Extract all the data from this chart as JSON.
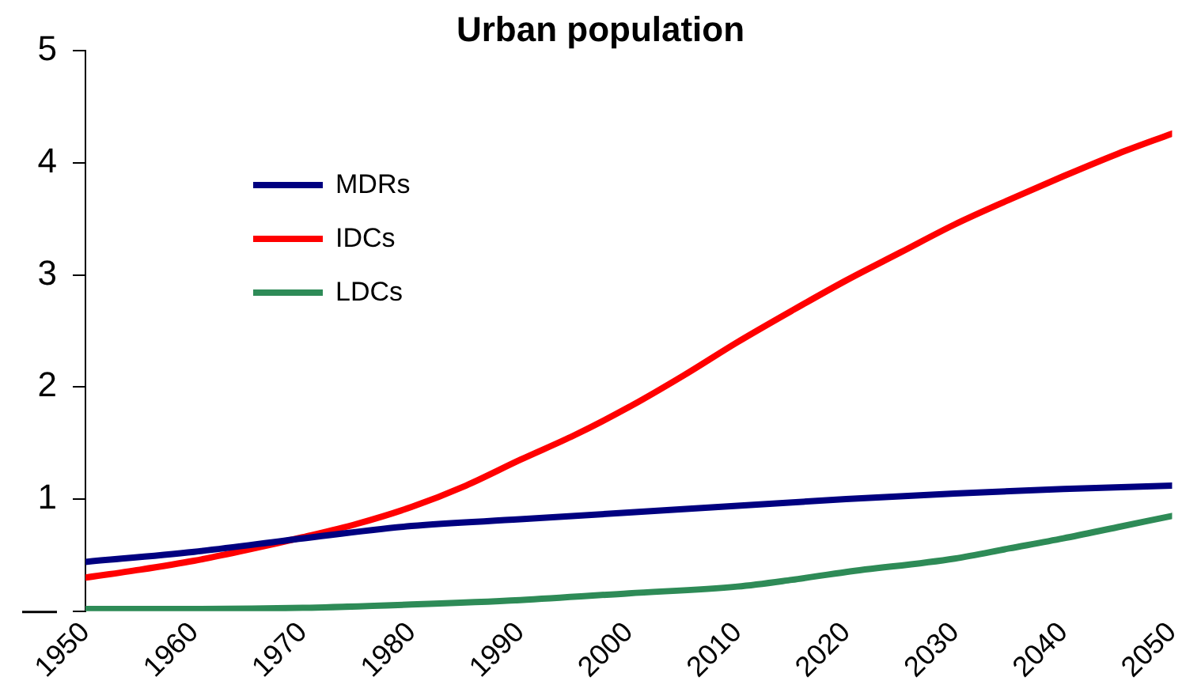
{
  "chart_data": {
    "type": "line",
    "title": "Urban population",
    "xlim": [
      1950,
      2050
    ],
    "xticks": [
      1950,
      1960,
      1970,
      1980,
      1990,
      2000,
      2010,
      2020,
      2030,
      2040,
      2050
    ],
    "ylim": [
      0,
      5
    ],
    "yticks": [
      {
        "value": 0,
        "label": "—"
      },
      1,
      2,
      3,
      4,
      5
    ],
    "grid": false,
    "legend": "top left",
    "marker": "none",
    "line_style": "solid",
    "series": [
      {
        "name": "MDRs",
        "color": "#000080",
        "x": [
          1950,
          1960,
          1970,
          1980,
          1990,
          2000,
          2010,
          2020,
          2030,
          2040,
          2050
        ],
        "values": [
          0.44,
          0.53,
          0.65,
          0.76,
          0.82,
          0.88,
          0.94,
          1.0,
          1.05,
          1.09,
          1.12
        ]
      },
      {
        "name": "IDCs",
        "color": "#ff0000",
        "x": [
          1950,
          1955,
          1960,
          1965,
          1970,
          1975,
          1980,
          1985,
          1990,
          1995,
          2000,
          2005,
          2010,
          2015,
          2020,
          2025,
          2030,
          2035,
          2040,
          2045,
          2050
        ],
        "values": [
          0.3,
          0.37,
          0.45,
          0.55,
          0.66,
          0.78,
          0.93,
          1.12,
          1.35,
          1.57,
          1.82,
          2.1,
          2.4,
          2.68,
          2.95,
          3.2,
          3.45,
          3.67,
          3.88,
          4.08,
          4.26
        ]
      },
      {
        "name": "LDCs",
        "color": "#2e8b57",
        "x": [
          1950,
          1960,
          1970,
          1980,
          1990,
          2000,
          2010,
          2015,
          2020,
          2030,
          2035,
          2040,
          2045,
          2050
        ],
        "values": [
          0.02,
          0.02,
          0.03,
          0.06,
          0.1,
          0.16,
          0.22,
          0.28,
          0.35,
          0.47,
          0.56,
          0.65,
          0.75,
          0.85
        ]
      }
    ]
  }
}
